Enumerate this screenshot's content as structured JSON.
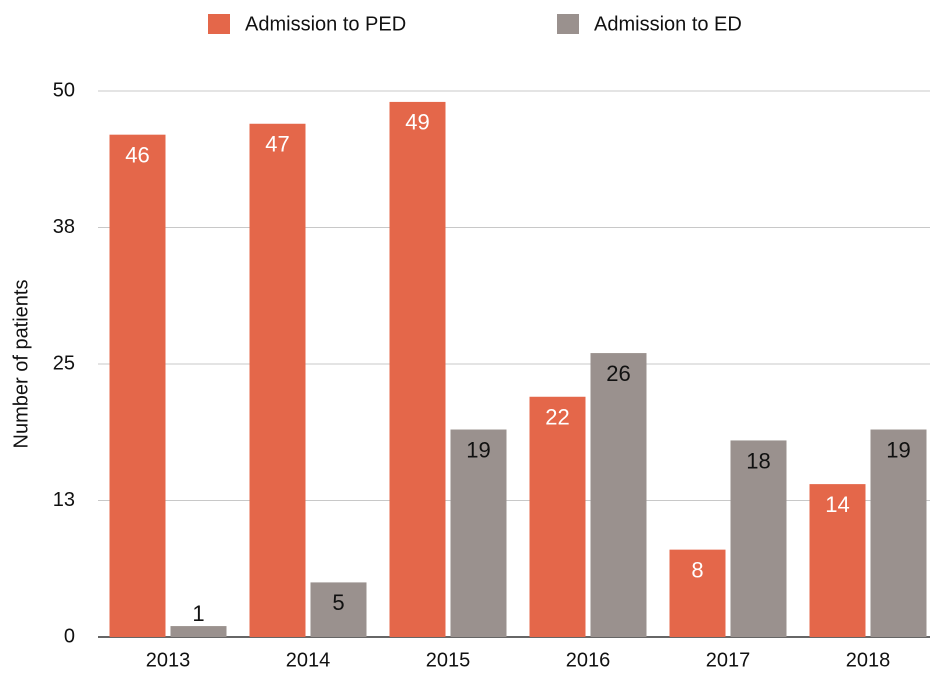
{
  "chart_data": {
    "type": "bar",
    "y_label": "Number of patients",
    "categories": [
      "2013",
      "2014",
      "2015",
      "2016",
      "2017",
      "2018"
    ],
    "series": [
      {
        "name": "Admission to PED",
        "color": "#e4674a",
        "label_color": "#ffffff",
        "values": [
          46,
          47,
          49,
          22,
          8,
          14
        ]
      },
      {
        "name": "Admission to ED",
        "color": "#9a918e",
        "label_color": "#111111",
        "values": [
          1,
          5,
          19,
          26,
          18,
          19
        ]
      }
    ],
    "ylim": [
      0,
      50
    ],
    "yticks": [
      0,
      {
        "value": 12.5,
        "label": "13"
      },
      25,
      {
        "value": 37.5,
        "label": "38"
      },
      50
    ],
    "grid": true
  }
}
